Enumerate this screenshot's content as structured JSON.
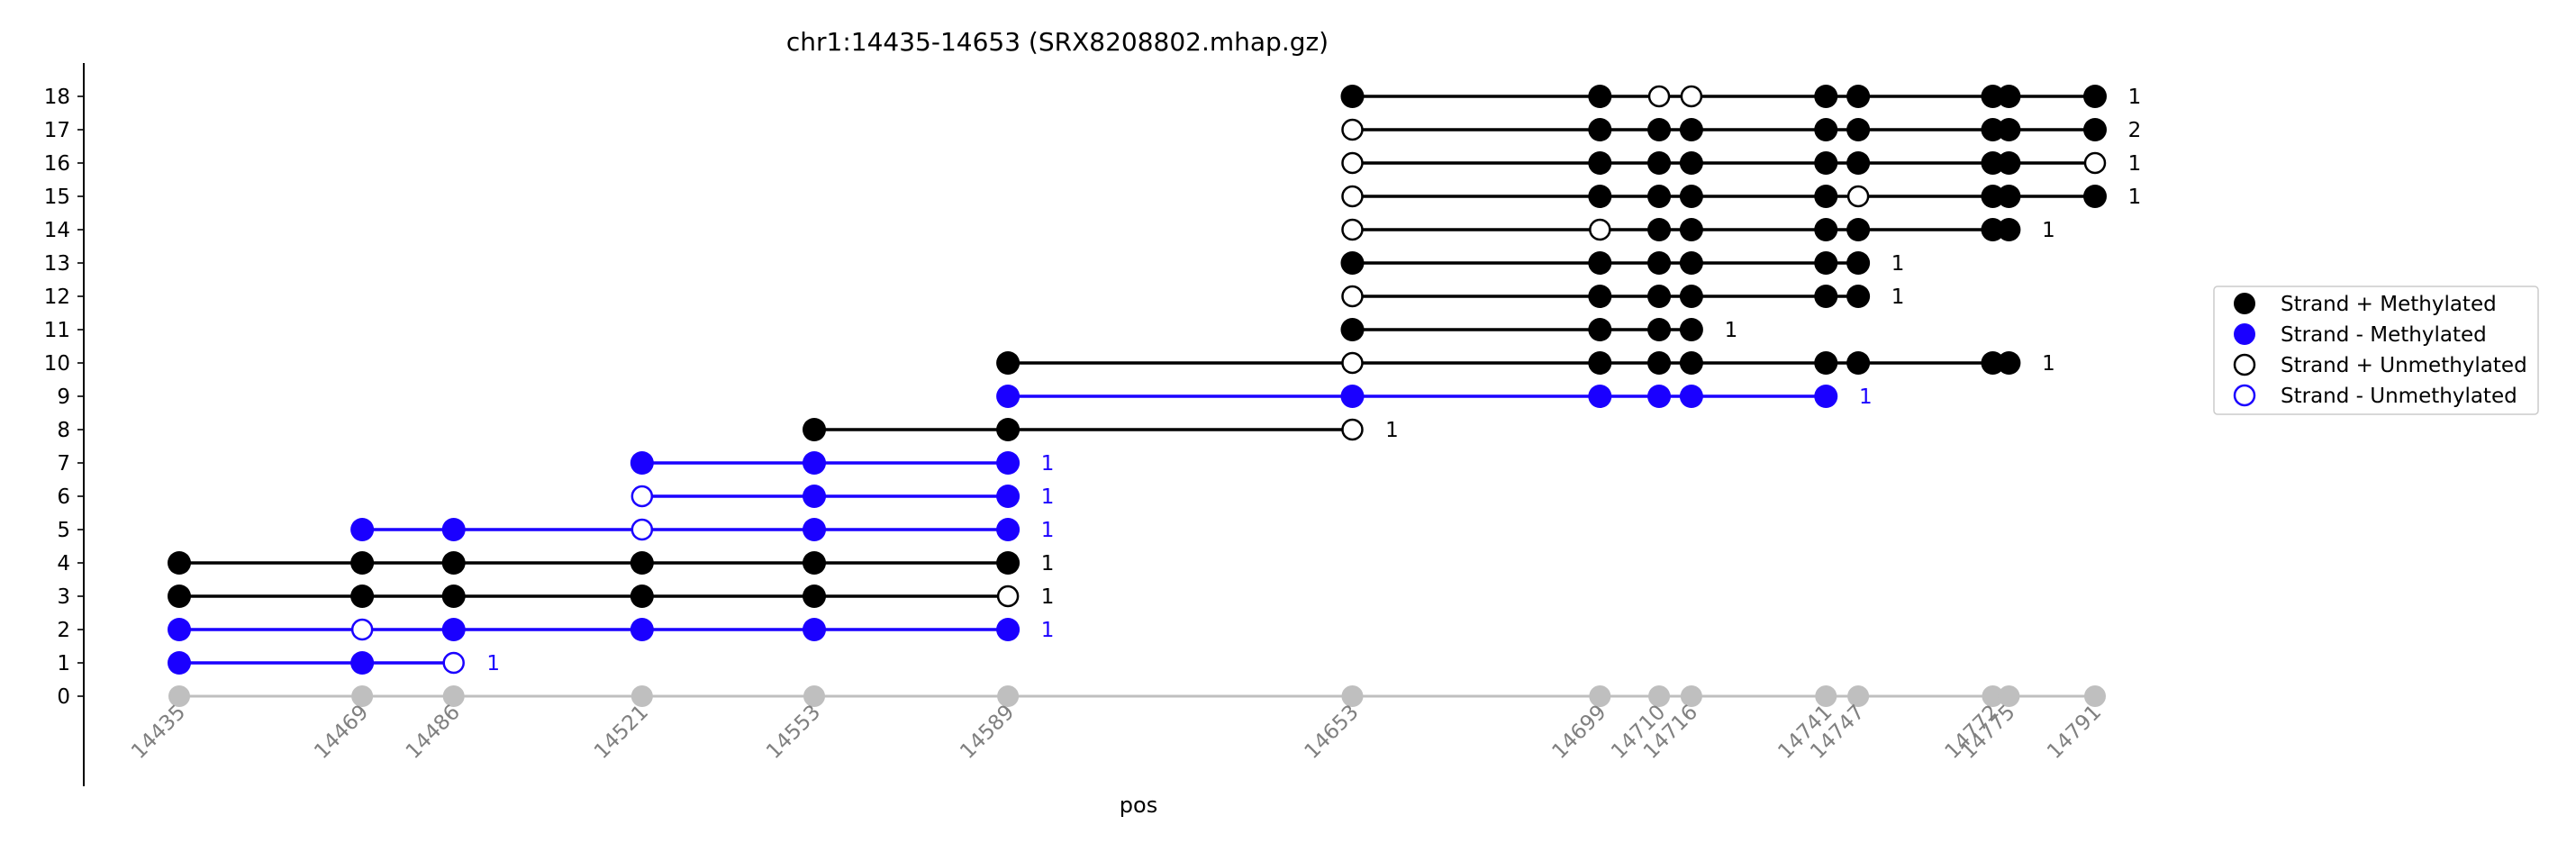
{
  "chart_data": {
    "type": "scatter",
    "title": "chr1:14435-14653 (SRX8208802.mhap.gz)",
    "xlabel": "pos",
    "ylabel": "",
    "positions": [
      14435,
      14469,
      14486,
      14521,
      14553,
      14589,
      14653,
      14699,
      14710,
      14716,
      14741,
      14747,
      14772,
      14775,
      14791
    ],
    "xlim": [
      14435,
      14791
    ],
    "ylim": [
      0,
      18
    ],
    "yticks": [
      0,
      1,
      2,
      3,
      4,
      5,
      6,
      7,
      8,
      9,
      10,
      11,
      12,
      13,
      14,
      15,
      16,
      17,
      18
    ],
    "reference_row": {
      "y": 0,
      "color": "#bfbfbf"
    },
    "colors": {
      "plus": "#000000",
      "minus": "#1a00ff"
    },
    "reads": [
      {
        "y": 1,
        "strand": "-",
        "count": "1",
        "sites": [
          [
            14435,
            1
          ],
          [
            14469,
            1
          ],
          [
            14486,
            0
          ]
        ]
      },
      {
        "y": 2,
        "strand": "-",
        "count": "1",
        "sites": [
          [
            14435,
            1
          ],
          [
            14469,
            0
          ],
          [
            14486,
            1
          ],
          [
            14521,
            1
          ],
          [
            14553,
            1
          ],
          [
            14589,
            1
          ]
        ]
      },
      {
        "y": 3,
        "strand": "+",
        "count": "1",
        "sites": [
          [
            14435,
            1
          ],
          [
            14469,
            1
          ],
          [
            14486,
            1
          ],
          [
            14521,
            1
          ],
          [
            14553,
            1
          ],
          [
            14589,
            0
          ]
        ]
      },
      {
        "y": 4,
        "strand": "+",
        "count": "1",
        "sites": [
          [
            14435,
            1
          ],
          [
            14469,
            1
          ],
          [
            14486,
            1
          ],
          [
            14521,
            1
          ],
          [
            14553,
            1
          ],
          [
            14589,
            1
          ]
        ]
      },
      {
        "y": 5,
        "strand": "-",
        "count": "1",
        "sites": [
          [
            14469,
            1
          ],
          [
            14486,
            1
          ],
          [
            14521,
            0
          ],
          [
            14553,
            1
          ],
          [
            14589,
            1
          ]
        ]
      },
      {
        "y": 6,
        "strand": "-",
        "count": "1",
        "sites": [
          [
            14521,
            0
          ],
          [
            14553,
            1
          ],
          [
            14589,
            1
          ]
        ]
      },
      {
        "y": 7,
        "strand": "-",
        "count": "1",
        "sites": [
          [
            14521,
            1
          ],
          [
            14553,
            1
          ],
          [
            14589,
            1
          ]
        ]
      },
      {
        "y": 8,
        "strand": "+",
        "count": "1",
        "sites": [
          [
            14553,
            1
          ],
          [
            14589,
            1
          ],
          [
            14653,
            0
          ]
        ]
      },
      {
        "y": 9,
        "strand": "-",
        "count": "1",
        "sites": [
          [
            14589,
            1
          ],
          [
            14653,
            1
          ],
          [
            14699,
            1
          ],
          [
            14710,
            1
          ],
          [
            14716,
            1
          ],
          [
            14741,
            1
          ]
        ]
      },
      {
        "y": 10,
        "strand": "+",
        "count": "1",
        "sites": [
          [
            14589,
            1
          ],
          [
            14653,
            0
          ],
          [
            14699,
            1
          ],
          [
            14710,
            1
          ],
          [
            14716,
            1
          ],
          [
            14741,
            1
          ],
          [
            14747,
            1
          ],
          [
            14772,
            1
          ],
          [
            14775,
            1
          ]
        ]
      },
      {
        "y": 11,
        "strand": "+",
        "count": "1",
        "sites": [
          [
            14653,
            1
          ],
          [
            14699,
            1
          ],
          [
            14710,
            1
          ],
          [
            14716,
            1
          ]
        ]
      },
      {
        "y": 12,
        "strand": "+",
        "count": "1",
        "sites": [
          [
            14653,
            0
          ],
          [
            14699,
            1
          ],
          [
            14710,
            1
          ],
          [
            14716,
            1
          ],
          [
            14741,
            1
          ],
          [
            14747,
            1
          ]
        ]
      },
      {
        "y": 13,
        "strand": "+",
        "count": "1",
        "sites": [
          [
            14653,
            1
          ],
          [
            14699,
            1
          ],
          [
            14710,
            1
          ],
          [
            14716,
            1
          ],
          [
            14741,
            1
          ],
          [
            14747,
            1
          ]
        ]
      },
      {
        "y": 14,
        "strand": "+",
        "count": "1",
        "sites": [
          [
            14653,
            0
          ],
          [
            14699,
            0
          ],
          [
            14710,
            1
          ],
          [
            14716,
            1
          ],
          [
            14741,
            1
          ],
          [
            14747,
            1
          ],
          [
            14772,
            1
          ],
          [
            14775,
            1
          ]
        ]
      },
      {
        "y": 15,
        "strand": "+",
        "count": "1",
        "sites": [
          [
            14653,
            0
          ],
          [
            14699,
            1
          ],
          [
            14710,
            1
          ],
          [
            14716,
            1
          ],
          [
            14741,
            1
          ],
          [
            14747,
            0
          ],
          [
            14772,
            1
          ],
          [
            14775,
            1
          ],
          [
            14791,
            1
          ]
        ]
      },
      {
        "y": 16,
        "strand": "+",
        "count": "1",
        "sites": [
          [
            14653,
            0
          ],
          [
            14699,
            1
          ],
          [
            14710,
            1
          ],
          [
            14716,
            1
          ],
          [
            14741,
            1
          ],
          [
            14747,
            1
          ],
          [
            14772,
            1
          ],
          [
            14775,
            1
          ],
          [
            14791,
            0
          ]
        ]
      },
      {
        "y": 17,
        "strand": "+",
        "count": "2",
        "sites": [
          [
            14653,
            0
          ],
          [
            14699,
            1
          ],
          [
            14710,
            1
          ],
          [
            14716,
            1
          ],
          [
            14741,
            1
          ],
          [
            14747,
            1
          ],
          [
            14772,
            1
          ],
          [
            14775,
            1
          ],
          [
            14791,
            1
          ]
        ]
      },
      {
        "y": 18,
        "strand": "+",
        "count": "1",
        "sites": [
          [
            14653,
            1
          ],
          [
            14699,
            1
          ],
          [
            14710,
            0
          ],
          [
            14716,
            0
          ],
          [
            14741,
            1
          ],
          [
            14747,
            1
          ],
          [
            14772,
            1
          ],
          [
            14775,
            1
          ],
          [
            14791,
            1
          ]
        ]
      }
    ],
    "legend": {
      "placement": "right",
      "entries": [
        {
          "label": "Strand + Methylated",
          "color": "#000000",
          "filled": true
        },
        {
          "label": "Strand - Methylated",
          "color": "#1a00ff",
          "filled": true
        },
        {
          "label": "Strand + Unmethylated",
          "color": "#000000",
          "filled": false
        },
        {
          "label": "Strand - Unmethylated",
          "color": "#1a00ff",
          "filled": false
        }
      ]
    }
  }
}
